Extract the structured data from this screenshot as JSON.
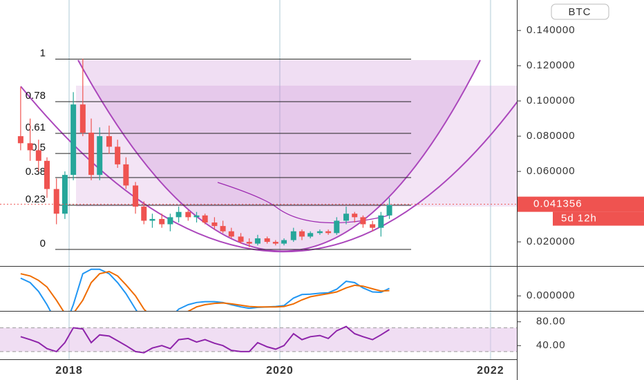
{
  "chart_data": {
    "type": "candlestick",
    "symbol": "BTC",
    "xlim": [
      2017.344,
      2022.25
    ],
    "xticks": [
      2018,
      2020,
      2022
    ],
    "ylim": [
      0.0063,
      0.1573
    ],
    "yticks": [
      {
        "value": 0.02,
        "label": "0.020000"
      },
      {
        "value": 0.06,
        "label": "0.060000"
      },
      {
        "value": 0.08,
        "label": "0.080000"
      },
      {
        "value": 0.1,
        "label": "0.100000"
      },
      {
        "value": 0.12,
        "label": "0.120000"
      },
      {
        "value": 0.14,
        "label": "0.140000"
      }
    ],
    "up_color": "#26a69a",
    "down_color": "#ef5350",
    "last_price": 0.041356,
    "countdown": "5d 12h",
    "fib_levels": [
      {
        "label": "1",
        "price": 0.1237
      },
      {
        "label": "0.78",
        "price": 0.0996
      },
      {
        "label": "0.61",
        "price": 0.0816
      },
      {
        "label": "0.5",
        "price": 0.0702
      },
      {
        "label": "0.38",
        "price": 0.0565
      },
      {
        "label": "0.23",
        "price": 0.0408
      },
      {
        "label": "0",
        "price": 0.0157
      }
    ],
    "candles": [
      [
        2017.54,
        0.08,
        0.108,
        0.072,
        0.076
      ],
      [
        2017.63,
        0.076,
        0.09,
        0.066,
        0.072
      ],
      [
        2017.71,
        0.072,
        0.078,
        0.06,
        0.066
      ],
      [
        2017.79,
        0.066,
        0.068,
        0.045,
        0.05
      ],
      [
        2017.88,
        0.05,
        0.056,
        0.03,
        0.036
      ],
      [
        2017.96,
        0.036,
        0.06,
        0.033,
        0.058
      ],
      [
        2018.04,
        0.058,
        0.105,
        0.055,
        0.098
      ],
      [
        2018.13,
        0.098,
        0.124,
        0.08,
        0.082
      ],
      [
        2018.21,
        0.082,
        0.09,
        0.055,
        0.058
      ],
      [
        2018.29,
        0.058,
        0.085,
        0.055,
        0.08
      ],
      [
        2018.38,
        0.08,
        0.086,
        0.07,
        0.074
      ],
      [
        2018.46,
        0.074,
        0.078,
        0.062,
        0.064
      ],
      [
        2018.54,
        0.064,
        0.068,
        0.05,
        0.052
      ],
      [
        2018.63,
        0.052,
        0.054,
        0.036,
        0.04
      ],
      [
        2018.71,
        0.04,
        0.043,
        0.03,
        0.032
      ],
      [
        2018.79,
        0.032,
        0.036,
        0.028,
        0.033
      ],
      [
        2018.88,
        0.033,
        0.036,
        0.028,
        0.03
      ],
      [
        2018.96,
        0.03,
        0.036,
        0.026,
        0.034
      ],
      [
        2019.04,
        0.034,
        0.04,
        0.031,
        0.037
      ],
      [
        2019.13,
        0.037,
        0.038,
        0.032,
        0.034
      ],
      [
        2019.21,
        0.034,
        0.037,
        0.031,
        0.035
      ],
      [
        2019.29,
        0.035,
        0.036,
        0.03,
        0.031
      ],
      [
        2019.38,
        0.031,
        0.034,
        0.027,
        0.029
      ],
      [
        2019.46,
        0.029,
        0.032,
        0.025,
        0.026
      ],
      [
        2019.54,
        0.026,
        0.028,
        0.022,
        0.023
      ],
      [
        2019.63,
        0.023,
        0.025,
        0.019,
        0.02
      ],
      [
        2019.71,
        0.02,
        0.022,
        0.017,
        0.019
      ],
      [
        2019.79,
        0.019,
        0.024,
        0.018,
        0.022
      ],
      [
        2019.88,
        0.022,
        0.023,
        0.019,
        0.02
      ],
      [
        2019.96,
        0.02,
        0.021,
        0.018,
        0.019
      ],
      [
        2020.04,
        0.019,
        0.022,
        0.018,
        0.021
      ],
      [
        2020.13,
        0.021,
        0.028,
        0.02,
        0.026
      ],
      [
        2020.21,
        0.026,
        0.027,
        0.021,
        0.023
      ],
      [
        2020.29,
        0.023,
        0.026,
        0.022,
        0.025
      ],
      [
        2020.38,
        0.025,
        0.027,
        0.024,
        0.026
      ],
      [
        2020.46,
        0.026,
        0.027,
        0.024,
        0.025
      ],
      [
        2020.54,
        0.025,
        0.034,
        0.024,
        0.032
      ],
      [
        2020.63,
        0.032,
        0.04,
        0.03,
        0.036
      ],
      [
        2020.71,
        0.036,
        0.037,
        0.031,
        0.034
      ],
      [
        2020.79,
        0.034,
        0.035,
        0.028,
        0.03
      ],
      [
        2020.88,
        0.03,
        0.032,
        0.026,
        0.028
      ],
      [
        2020.96,
        0.028,
        0.037,
        0.023,
        0.035
      ],
      [
        2021.04,
        0.035,
        0.045,
        0.033,
        0.041
      ]
    ],
    "macd": {
      "ylim": [
        -0.0034,
        0.0066
      ],
      "yticks": [
        {
          "value": 0,
          "label": "0.000000"
        }
      ],
      "macd_color": "#2196f3",
      "signal_color": "#ef6c00",
      "macd": [
        0.004,
        0.003,
        0.001,
        -0.002,
        -0.006,
        -0.007,
        -0.002,
        0.005,
        0.006,
        0.006,
        0.005,
        0.003,
        0.0005,
        -0.003,
        -0.006,
        -0.007,
        -0.006,
        -0.005,
        -0.003,
        -0.002,
        -0.0015,
        -0.0013,
        -0.0013,
        -0.0015,
        -0.002,
        -0.0025,
        -0.0028,
        -0.0026,
        -0.0025,
        -0.0024,
        -0.0022,
        -0.0005,
        0.0003,
        0.0004,
        0.0006,
        0.0007,
        0.0015,
        0.0033,
        0.003,
        0.0018,
        0.0009,
        0.0008,
        0.0017
      ],
      "signal": [
        0.005,
        0.0045,
        0.0035,
        0.002,
        -0.001,
        -0.004,
        -0.004,
        -0.001,
        0.003,
        0.005,
        0.0055,
        0.0045,
        0.0025,
        0.0,
        -0.003,
        -0.005,
        -0.006,
        -0.0055,
        -0.0045,
        -0.0035,
        -0.0025,
        -0.002,
        -0.0017,
        -0.0016,
        -0.0018,
        -0.0021,
        -0.0024,
        -0.0025,
        -0.0025,
        -0.0025,
        -0.0024,
        -0.0018,
        -0.0009,
        -0.0002,
        0.0002,
        0.0005,
        0.0009,
        0.0018,
        0.0024,
        0.0022,
        0.0016,
        0.0011,
        0.0012
      ]
    },
    "rsi": {
      "ylim": [
        17.1,
        97.1
      ],
      "yticks": [
        {
          "value": 80,
          "label": "80.00"
        },
        {
          "value": 40,
          "label": "40.00"
        }
      ],
      "band": [
        30,
        70
      ],
      "color": "#8e24aa",
      "values": [
        55,
        50,
        45,
        35,
        30,
        45,
        70,
        68,
        45,
        58,
        56,
        48,
        40,
        30,
        28,
        36,
        40,
        35,
        50,
        52,
        46,
        50,
        44,
        40,
        32,
        30,
        30,
        45,
        38,
        34,
        40,
        60,
        50,
        55,
        57,
        52,
        65,
        72,
        60,
        55,
        50,
        58,
        67
      ]
    }
  }
}
